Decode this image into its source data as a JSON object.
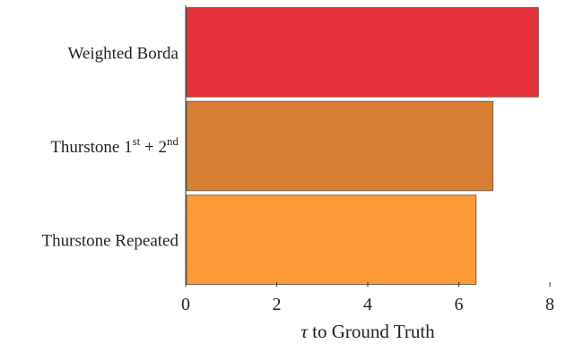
{
  "chart_data": {
    "type": "bar",
    "orientation": "horizontal",
    "categories": [
      {
        "base": "Weighted Borda",
        "superscripts": []
      },
      {
        "base": "Thurstone 1",
        "superscripts": [
          "st",
          "nd"
        ],
        "parts": [
          "Thurstone 1",
          "st",
          " + 2",
          "nd"
        ]
      },
      {
        "base": "Thurstone Repeated",
        "superscripts": []
      }
    ],
    "category_labels": [
      "Weighted Borda",
      "Thurstone 1st + 2nd",
      "Thurstone Repeated"
    ],
    "values": [
      7.75,
      6.75,
      6.38
    ],
    "colors": [
      "#e5323a",
      "#d87f34",
      "#fb9a37"
    ],
    "xlabel": {
      "symbol": "τ",
      "text": " to Ground Truth"
    },
    "xlim": [
      0,
      8
    ],
    "xticks": [
      "0",
      "2",
      "4",
      "6",
      "8"
    ],
    "grid": false,
    "legend": "none"
  }
}
